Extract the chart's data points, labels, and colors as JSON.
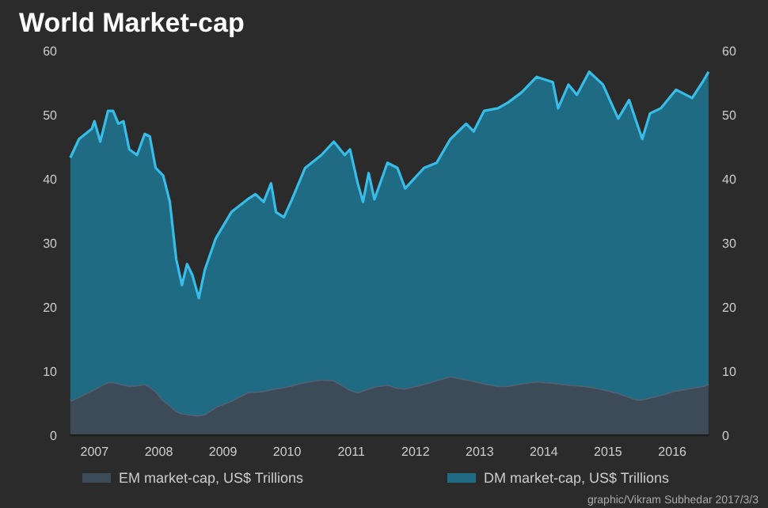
{
  "chart_data": {
    "type": "area",
    "title": "World Market-cap",
    "stacked": true,
    "x": [
      "2007-02-14",
      "2007-04-04",
      "2007-06-16",
      "2007-07-01",
      "2007-08-03",
      "2007-09-16",
      "2007-10-15",
      "2007-11-14",
      "2007-12-13",
      "2008-01-15",
      "2008-02-28",
      "2008-04-12",
      "2008-05-11",
      "2008-06-13",
      "2008-07-26",
      "2008-09-02",
      "2008-10-08",
      "2008-11-10",
      "2008-12-09",
      "2009-01-08",
      "2009-02-14",
      "2009-03-20",
      "2009-05-21",
      "2009-08-18",
      "2009-11-18",
      "2010-01-02",
      "2010-02-18",
      "2010-04-01",
      "2010-04-29",
      "2010-06-13",
      "2010-07-29",
      "2010-10-12",
      "2011-01-12",
      "2011-03-24",
      "2011-05-25",
      "2011-06-24",
      "2011-08-07",
      "2011-09-06",
      "2011-10-08",
      "2011-11-10",
      "2012-01-23",
      "2012-03-20",
      "2012-05-03",
      "2012-08-18",
      "2012-10-29",
      "2013-01-15",
      "2013-04-15",
      "2013-05-28",
      "2013-07-26",
      "2013-10-12",
      "2013-12-09",
      "2014-02-25",
      "2014-05-21",
      "2014-08-21",
      "2014-09-20",
      "2014-11-18",
      "2015-01-05",
      "2015-03-16",
      "2015-06-02",
      "2015-08-28",
      "2015-10-29",
      "2015-12-13",
      "2016-01-12",
      "2016-02-25",
      "2016-04-26",
      "2016-07-22",
      "2016-10-22",
      "2016-12-20",
      "2017-01-23"
    ],
    "series": [
      {
        "name": "EM market-cap, US$ Trillions",
        "color": "#3d4a57",
        "values": [
          5.4,
          6.0,
          7.0,
          7.2,
          7.7,
          8.3,
          8.3,
          8.1,
          7.9,
          7.7,
          7.8,
          8.0,
          7.6,
          6.9,
          5.5,
          4.7,
          3.8,
          3.4,
          3.3,
          3.2,
          3.1,
          3.3,
          4.4,
          5.4,
          6.7,
          6.8,
          6.9,
          7.2,
          7.3,
          7.5,
          7.8,
          8.3,
          8.7,
          8.6,
          7.6,
          7.1,
          6.7,
          7.0,
          7.3,
          7.6,
          7.9,
          7.4,
          7.3,
          8.0,
          8.6,
          9.2,
          8.7,
          8.5,
          8.1,
          7.7,
          7.7,
          8.1,
          8.4,
          8.2,
          8.1,
          7.9,
          7.8,
          7.6,
          7.2,
          6.6,
          6.0,
          5.6,
          5.6,
          5.9,
          6.3,
          7.0,
          7.4,
          7.7,
          8.0
        ]
      },
      {
        "name": "DM market-cap, US$ Trillions",
        "color": "#1f6b83",
        "values": [
          37.9,
          40.2,
          40.8,
          41.8,
          38.1,
          42.3,
          42.3,
          40.5,
          41.1,
          36.9,
          35.9,
          39.0,
          39.0,
          34.8,
          35.0,
          31.7,
          23.7,
          20.0,
          23.4,
          21.8,
          18.3,
          22.5,
          26.3,
          29.4,
          30.1,
          30.8,
          29.5,
          32.1,
          27.5,
          26.5,
          29.0,
          33.4,
          35.0,
          37.2,
          36.1,
          37.5,
          32.6,
          29.4,
          33.6,
          29.2,
          34.6,
          34.3,
          31.2,
          33.7,
          33.9,
          37.0,
          39.9,
          38.9,
          42.5,
          43.3,
          44.2,
          45.4,
          47.5,
          46.9,
          42.9,
          46.8,
          45.3,
          49.1,
          47.5,
          42.8,
          46.3,
          43.0,
          40.6,
          44.3,
          44.7,
          46.9,
          45.2,
          47.4,
          48.7
        ]
      }
    ],
    "xlim": [
      "2007-02-10",
      "2017-01-28"
    ],
    "xticks": [
      {
        "value": "2007-07-01",
        "label": "2007"
      },
      {
        "value": "2008-07-01",
        "label": "2008"
      },
      {
        "value": "2009-07-01",
        "label": "2009"
      },
      {
        "value": "2010-07-01",
        "label": "2010"
      },
      {
        "value": "2011-07-01",
        "label": "2011"
      },
      {
        "value": "2012-07-01",
        "label": "2012"
      },
      {
        "value": "2013-07-01",
        "label": "2013"
      },
      {
        "value": "2014-07-01",
        "label": "2014"
      },
      {
        "value": "2015-07-01",
        "label": "2015"
      },
      {
        "value": "2016-07-01",
        "label": "2016"
      }
    ],
    "ylim": [
      0,
      60
    ],
    "yticks": [
      0,
      10,
      20,
      30,
      40,
      50,
      60
    ],
    "y2lim": [
      0,
      60
    ],
    "y2ticks": [
      0,
      10,
      20,
      30,
      40,
      50,
      60
    ],
    "legend": "bottom",
    "annotations": [
      "graphic/Vikram Subhedar 2017/3/3"
    ]
  }
}
